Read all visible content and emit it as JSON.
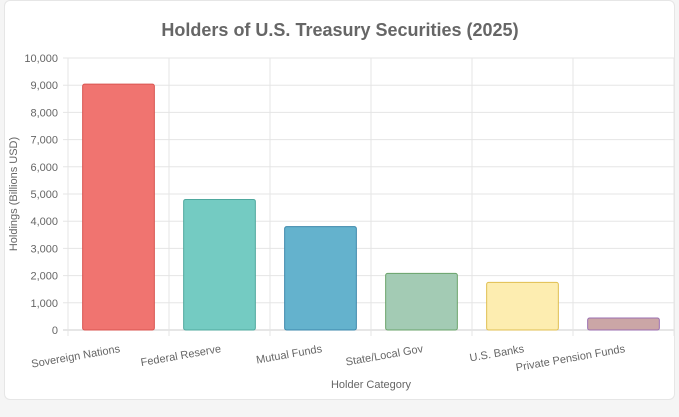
{
  "chart_data": {
    "type": "bar",
    "title": "Holders of U.S. Treasury Securities (2025)",
    "xlabel": "Holder Category",
    "ylabel": "Holdings (Billions USD)",
    "categories": [
      "Sovereign Nations",
      "Federal Reserve",
      "Mutual Funds",
      "State/Local Gov",
      "U.S. Banks",
      "Private Pension Funds"
    ],
    "values": [
      9040,
      4800,
      3800,
      2080,
      1750,
      440
    ],
    "ylim": [
      0,
      10000
    ],
    "yticks": [
      "0",
      "1,000",
      "2,000",
      "3,000",
      "4,000",
      "5,000",
      "6,000",
      "7,000",
      "8,000",
      "9,000",
      "10,000"
    ],
    "grid": true,
    "colors": [
      "#f07470",
      "#74cbc2",
      "#64b2cd",
      "#a3cbb4",
      "#fdedb0",
      "#cba6a6"
    ],
    "borders": [
      "#d9534f",
      "#4fa89e",
      "#3b87ab",
      "#6aa36a",
      "#e0bf50",
      "#9b6fb0"
    ]
  }
}
